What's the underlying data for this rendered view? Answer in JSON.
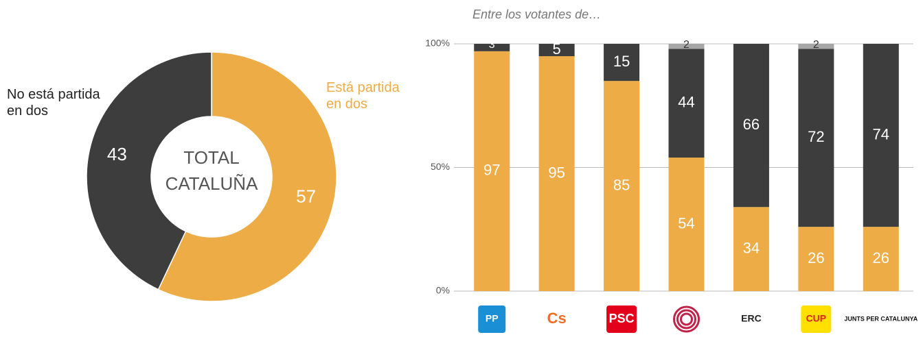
{
  "chart_data": [
    {
      "type": "donut",
      "categories": [
        "Está partida en dos",
        "No está partida en dos"
      ],
      "values": [
        57,
        43
      ],
      "colors": [
        "#edac45",
        "#3d3d3d"
      ],
      "center_label": [
        "TOTAL",
        "CATALUÑA"
      ]
    },
    {
      "type": "stacked_bar",
      "subtitle": "Entre los votantes de…",
      "categories": [
        "PP",
        "Cs",
        "PSC",
        null,
        "ERC",
        "CUP",
        "JUNTS PER CATALUNYA"
      ],
      "series": [
        {
          "color": "#edac45",
          "values": [
            97,
            95,
            85,
            54,
            34,
            26,
            26
          ]
        },
        {
          "color": "#3d3d3d",
          "values": [
            3,
            5,
            15,
            44,
            66,
            72,
            74
          ]
        },
        {
          "color": "#a6a6a6",
          "values": [
            null,
            null,
            null,
            2,
            null,
            2,
            null
          ]
        }
      ],
      "ylim": [
        0,
        100
      ],
      "yticks": [
        {
          "value": 0,
          "label": "0%"
        },
        {
          "value": 50,
          "label": "50%"
        },
        {
          "value": 100,
          "label": "100%"
        }
      ],
      "grid": true
    }
  ]
}
